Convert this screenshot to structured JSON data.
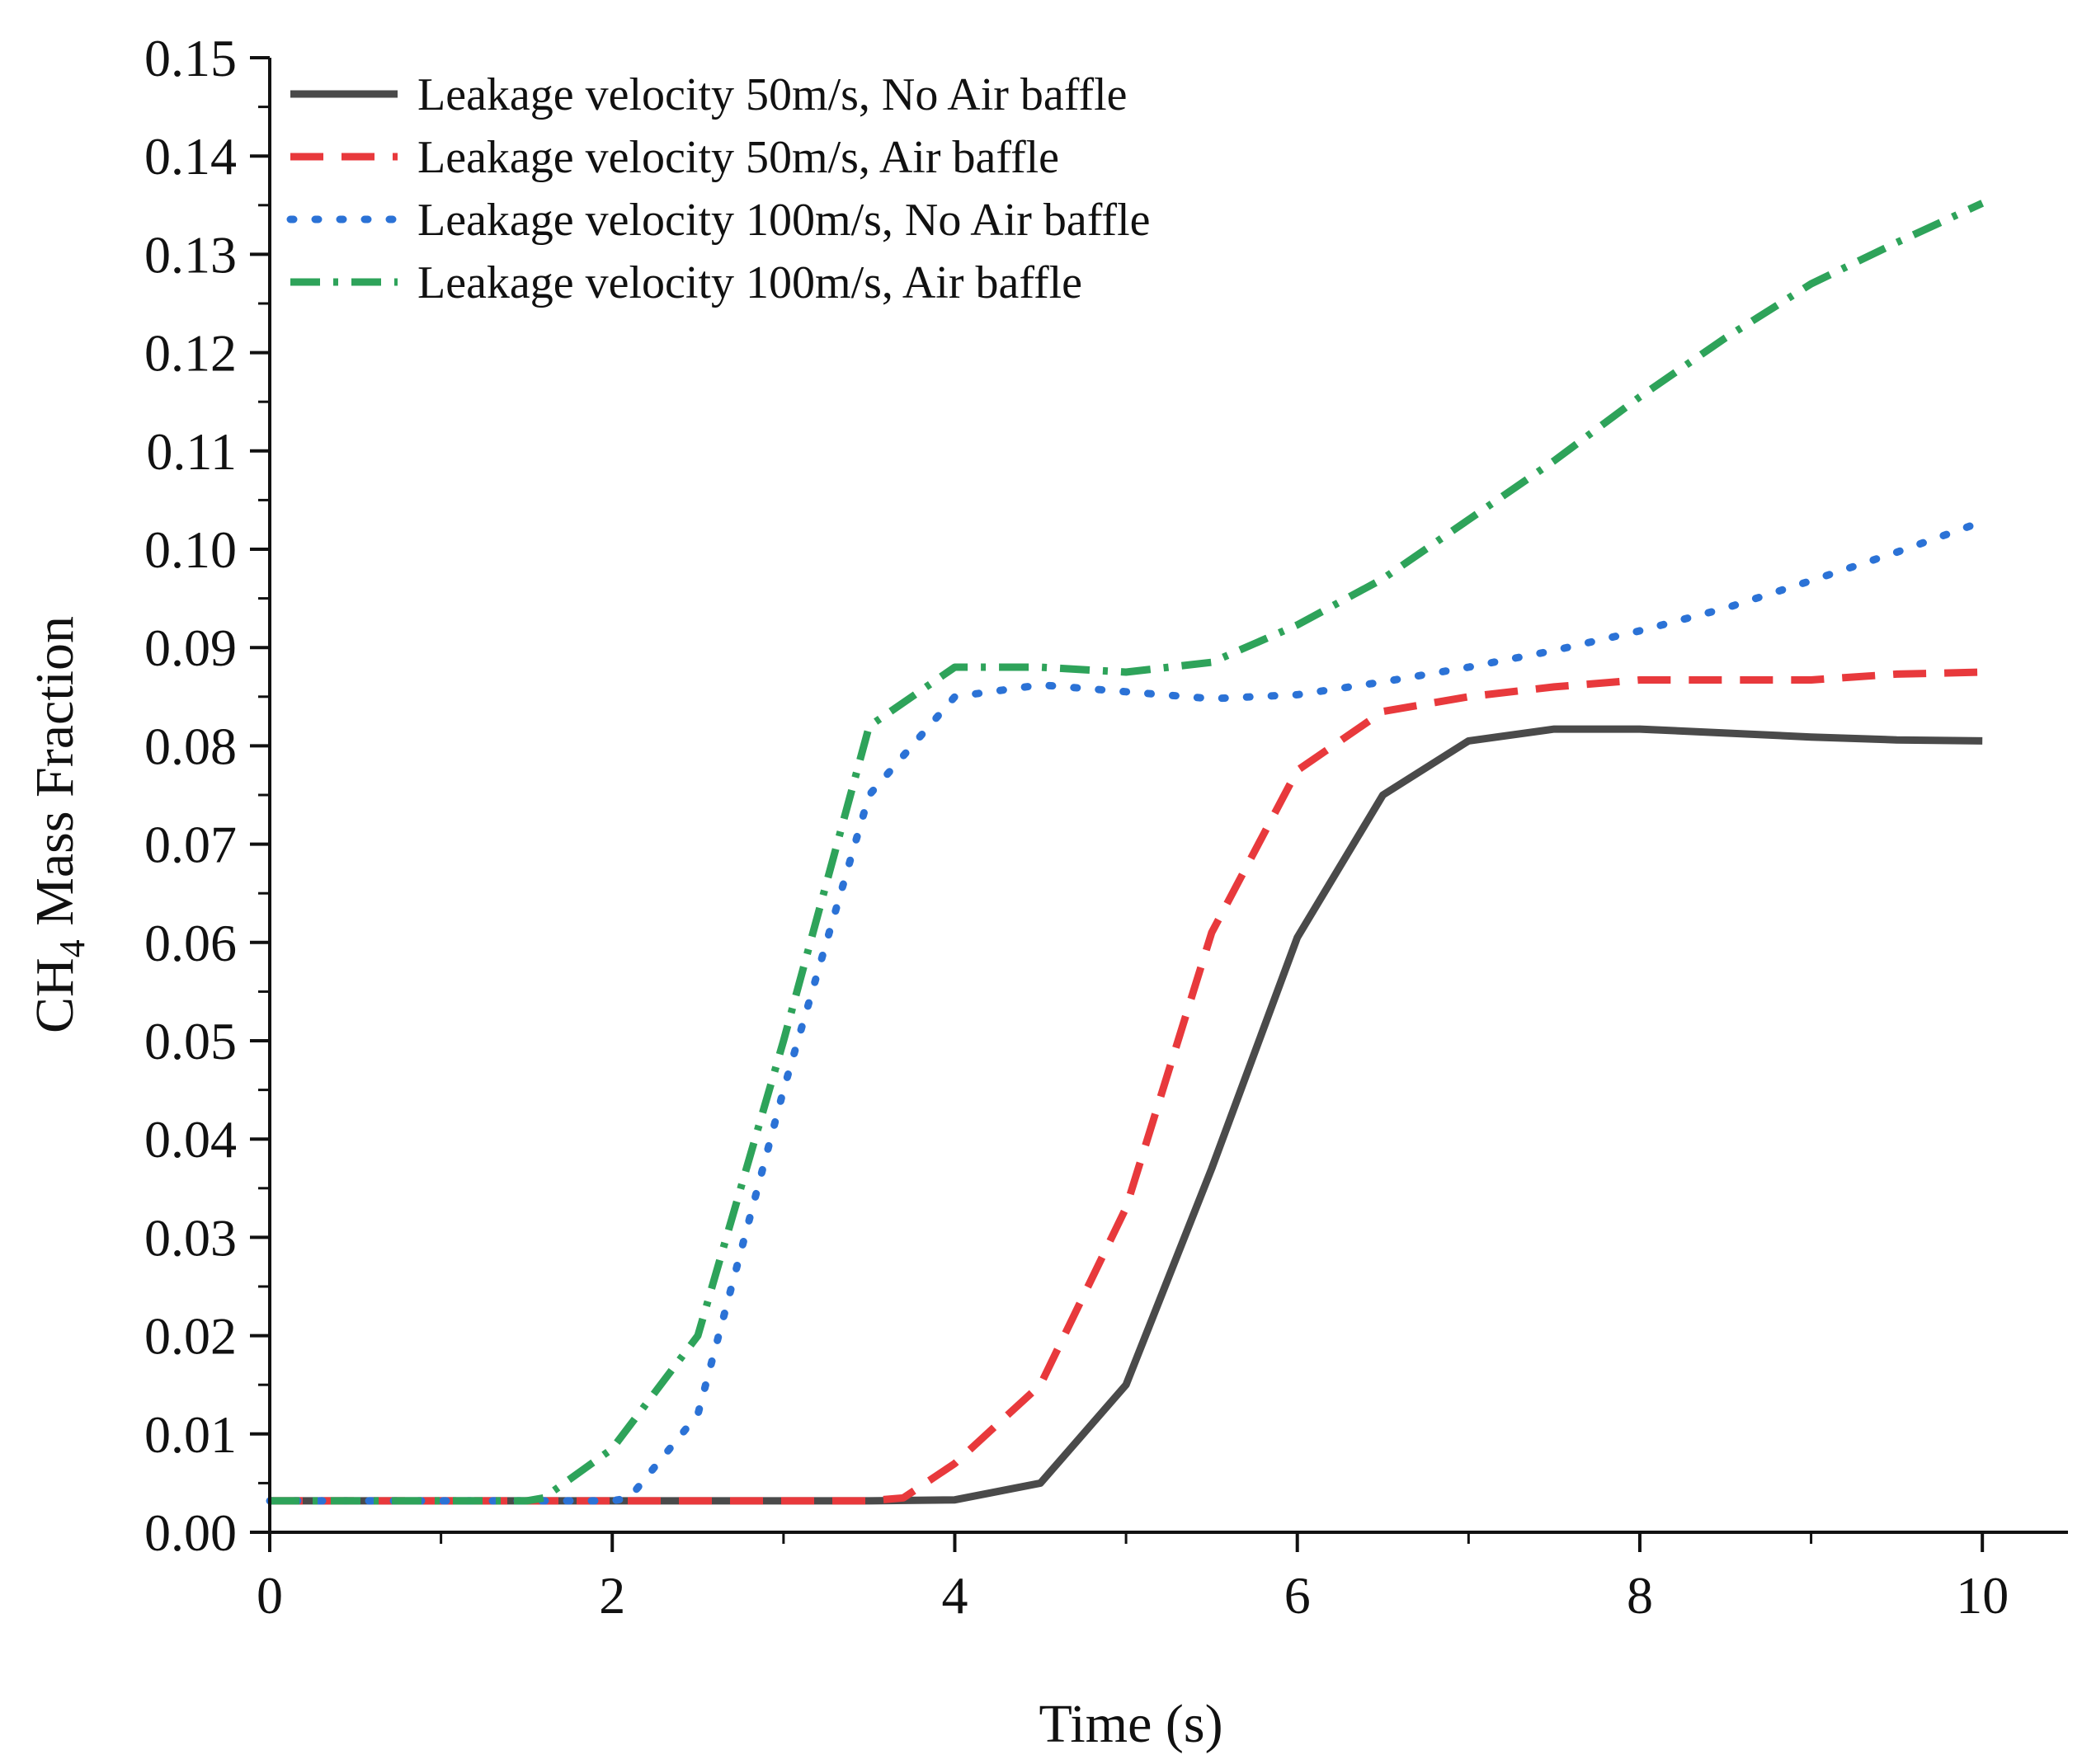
{
  "chart_data": {
    "type": "line",
    "xlabel": "Time (s)",
    "ylabel_main": "CH",
    "ylabel_sub": "4",
    "ylabel_rest": " Mass Fraction",
    "xlim": [
      0,
      10.5
    ],
    "ylim": [
      0,
      0.15
    ],
    "x_ticks": [
      0,
      2,
      4,
      6,
      8,
      10
    ],
    "x_tick_labels": [
      "0",
      "2",
      "4",
      "6",
      "8",
      "10"
    ],
    "y_ticks": [
      0,
      0.01,
      0.02,
      0.03,
      0.04,
      0.05,
      0.06,
      0.07,
      0.08,
      0.09,
      0.1,
      0.11,
      0.12,
      0.13,
      0.14,
      0.15
    ],
    "y_tick_labels": [
      "0.00",
      "0.01",
      "0.02",
      "0.03",
      "0.04",
      "0.05",
      "0.06",
      "0.07",
      "0.08",
      "0.09",
      "0.10",
      "0.11",
      "0.12",
      "0.13",
      "0.14",
      "0.15"
    ],
    "legend_position": "top-left",
    "series": [
      {
        "name": "Leakage velocity 50m/s, No Air baffle",
        "color": "#4a4a4a",
        "style": "solid",
        "x": [
          0,
          0.5,
          1,
          1.5,
          2,
          2.5,
          3,
          3.5,
          4,
          4.5,
          5,
          5.5,
          6,
          6.5,
          7,
          7.5,
          8,
          8.5,
          9,
          9.5,
          10
        ],
        "y": [
          0.0032,
          0.0032,
          0.0032,
          0.0032,
          0.0032,
          0.0032,
          0.0032,
          0.0032,
          0.0033,
          0.005,
          0.015,
          0.037,
          0.0605,
          0.075,
          0.0805,
          0.0817,
          0.0817,
          0.0813,
          0.0809,
          0.0806,
          0.0805
        ]
      },
      {
        "name": "Leakage velocity 50m/s, Air baffle",
        "color": "#e8393c",
        "style": "dashed",
        "x": [
          0,
          0.5,
          1,
          1.5,
          2,
          2.5,
          3,
          3.5,
          3.7,
          4,
          4.5,
          5,
          5.5,
          6,
          6.5,
          7,
          7.5,
          8,
          8.5,
          9,
          9.5,
          10
        ],
        "y": [
          0.0032,
          0.0032,
          0.0032,
          0.0032,
          0.0032,
          0.0032,
          0.0032,
          0.0032,
          0.0035,
          0.007,
          0.015,
          0.033,
          0.061,
          0.0775,
          0.0835,
          0.085,
          0.086,
          0.0867,
          0.0867,
          0.0867,
          0.0873,
          0.0875
        ]
      },
      {
        "name": "Leakage velocity 100m/s, No Air baffle",
        "color": "#2b72d6",
        "style": "dotted",
        "x": [
          0,
          0.5,
          1,
          1.5,
          2,
          2.1,
          2.5,
          3,
          3.5,
          4,
          4.5,
          5,
          5.5,
          6,
          6.5,
          7,
          7.5,
          8,
          8.5,
          9,
          9.5,
          10
        ],
        "y": [
          0.0032,
          0.0032,
          0.0032,
          0.0032,
          0.0032,
          0.0035,
          0.012,
          0.045,
          0.075,
          0.085,
          0.0862,
          0.0855,
          0.0848,
          0.0852,
          0.0865,
          0.088,
          0.0897,
          0.0917,
          0.094,
          0.0968,
          0.0997,
          0.1028
        ]
      },
      {
        "name": "Leakage velocity 100m/s, Air baffle",
        "color": "#2ea35a",
        "style": "dashdot",
        "x": [
          0,
          0.5,
          1,
          1.5,
          1.6,
          2,
          2.5,
          3,
          3.5,
          4,
          4.5,
          5,
          5.5,
          6,
          6.5,
          7,
          7.5,
          8,
          8.5,
          9,
          9.5,
          10
        ],
        "y": [
          0.0032,
          0.0032,
          0.0032,
          0.0032,
          0.0035,
          0.0085,
          0.02,
          0.05,
          0.082,
          0.088,
          0.088,
          0.0875,
          0.0885,
          0.0923,
          0.097,
          0.103,
          0.109,
          0.1155,
          0.1215,
          0.127,
          0.1312,
          0.1352
        ]
      }
    ]
  }
}
